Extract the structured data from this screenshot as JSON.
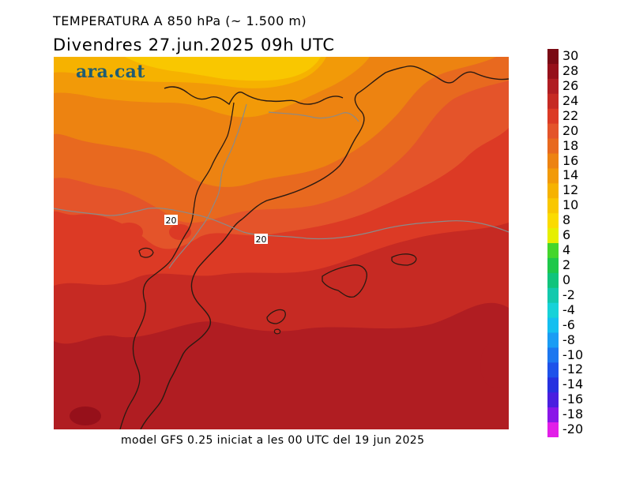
{
  "header": {
    "title": "TEMPERATURA A 850 hPa (~ 1.500 m)",
    "subtitle": "Divendres  27.jun.2025 09h UTC"
  },
  "footer": {
    "model_note": "model GFS 0.25 iniciat a les 00 UTC del 19 jun 2025"
  },
  "map": {
    "logo_text": "ara.cat",
    "contour_labels": [
      "20",
      "20"
    ]
  },
  "legend": {
    "items": [
      {
        "label": "30",
        "color": "#7a0a14"
      },
      {
        "label": "28",
        "color": "#96101a"
      },
      {
        "label": "26",
        "color": "#b01d22"
      },
      {
        "label": "24",
        "color": "#c62a23"
      },
      {
        "label": "22",
        "color": "#dc3a25"
      },
      {
        "label": "20",
        "color": "#e4542a"
      },
      {
        "label": "18",
        "color": "#e8691f"
      },
      {
        "label": "16",
        "color": "#ed8311"
      },
      {
        "label": "14",
        "color": "#f29a08"
      },
      {
        "label": "12",
        "color": "#f6b200"
      },
      {
        "label": "10",
        "color": "#f9c700"
      },
      {
        "label": "8",
        "color": "#fbdb00"
      },
      {
        "label": "6",
        "color": "#e6ef00"
      },
      {
        "label": "4",
        "color": "#44d62b"
      },
      {
        "label": "2",
        "color": "#1ec84a"
      },
      {
        "label": "0",
        "color": "#10c47c"
      },
      {
        "label": "-2",
        "color": "#12c9ad"
      },
      {
        "label": "-4",
        "color": "#16d2d8"
      },
      {
        "label": "-6",
        "color": "#14bff0"
      },
      {
        "label": "-8",
        "color": "#1a9cf4"
      },
      {
        "label": "-10",
        "color": "#1c77f0"
      },
      {
        "label": "-12",
        "color": "#1e52ea"
      },
      {
        "label": "-14",
        "color": "#2631e0"
      },
      {
        "label": "-16",
        "color": "#4a1fe0"
      },
      {
        "label": "-18",
        "color": "#8a16e8"
      },
      {
        "label": "-20",
        "color": "#e21ee8"
      }
    ]
  }
}
